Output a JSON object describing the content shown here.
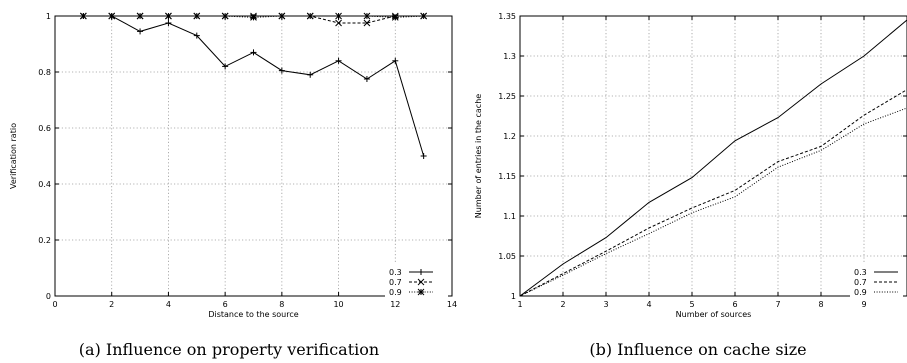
{
  "chart_data": [
    {
      "type": "line",
      "caption": "(a) Influence on property verification",
      "xlabel": "Distance to the source",
      "ylabel": "Verification ratio",
      "xlim": [
        0,
        14
      ],
      "ylim": [
        0,
        1
      ],
      "xticks": [
        0,
        2,
        4,
        6,
        8,
        10,
        12,
        14
      ],
      "yticks": [
        0,
        0.2,
        0.4,
        0.6,
        0.8,
        1
      ],
      "grid": true,
      "legend_position": "bottom-right",
      "series": [
        {
          "name": "0.3",
          "style": "solid",
          "marker": "plus",
          "x": [
            1,
            2,
            3,
            4,
            5,
            6,
            7,
            8,
            9,
            10,
            11,
            12,
            13
          ],
          "y": [
            1,
            1,
            0.945,
            0.975,
            0.93,
            0.82,
            0.87,
            0.805,
            0.79,
            0.84,
            0.775,
            0.84,
            0.5
          ]
        },
        {
          "name": "0.7",
          "style": "dashed",
          "marker": "cross",
          "x": [
            1,
            2,
            3,
            4,
            5,
            6,
            7,
            8,
            9,
            10,
            11,
            12,
            13
          ],
          "y": [
            1,
            1,
            1,
            1,
            1,
            1,
            1,
            1,
            1,
            0.975,
            0.975,
            1,
            1
          ]
        },
        {
          "name": "0.9",
          "style": "dotted",
          "marker": "star",
          "x": [
            1,
            2,
            3,
            4,
            5,
            6,
            7,
            8,
            9,
            10,
            11,
            12,
            13
          ],
          "y": [
            1,
            1,
            1,
            1,
            1,
            1,
            0.995,
            1,
            1,
            1,
            1,
            0.995,
            1
          ]
        }
      ]
    },
    {
      "type": "line",
      "caption": "(b) Influence on cache size",
      "xlabel": "Number of sources",
      "ylabel": "Number of entries in the cache",
      "xlim": [
        1,
        10
      ],
      "ylim": [
        1,
        1.35
      ],
      "xticks": [
        1,
        2,
        3,
        4,
        5,
        6,
        7,
        8,
        9
      ],
      "yticks": [
        1,
        1.05,
        1.1,
        1.15,
        1.2,
        1.25,
        1.3,
        1.35
      ],
      "grid": true,
      "legend_position": "bottom-right",
      "series": [
        {
          "name": "0.3",
          "style": "solid",
          "x": [
            1,
            2,
            3,
            4,
            5,
            6,
            7,
            8,
            9,
            10
          ],
          "y": [
            1,
            1.04,
            1.073,
            1.117,
            1.148,
            1.194,
            1.223,
            1.265,
            1.3,
            1.345
          ]
        },
        {
          "name": "0.7",
          "style": "dashed",
          "x": [
            1,
            2,
            3,
            4,
            5,
            6,
            7,
            8,
            9,
            10
          ],
          "y": [
            1,
            1.028,
            1.056,
            1.085,
            1.11,
            1.132,
            1.168,
            1.187,
            1.226,
            1.258
          ]
        },
        {
          "name": "0.9",
          "style": "dotted",
          "x": [
            1,
            2,
            3,
            4,
            5,
            6,
            7,
            8,
            9,
            10
          ],
          "y": [
            1,
            1.026,
            1.053,
            1.078,
            1.104,
            1.124,
            1.161,
            1.182,
            1.215,
            1.235
          ]
        }
      ]
    }
  ]
}
